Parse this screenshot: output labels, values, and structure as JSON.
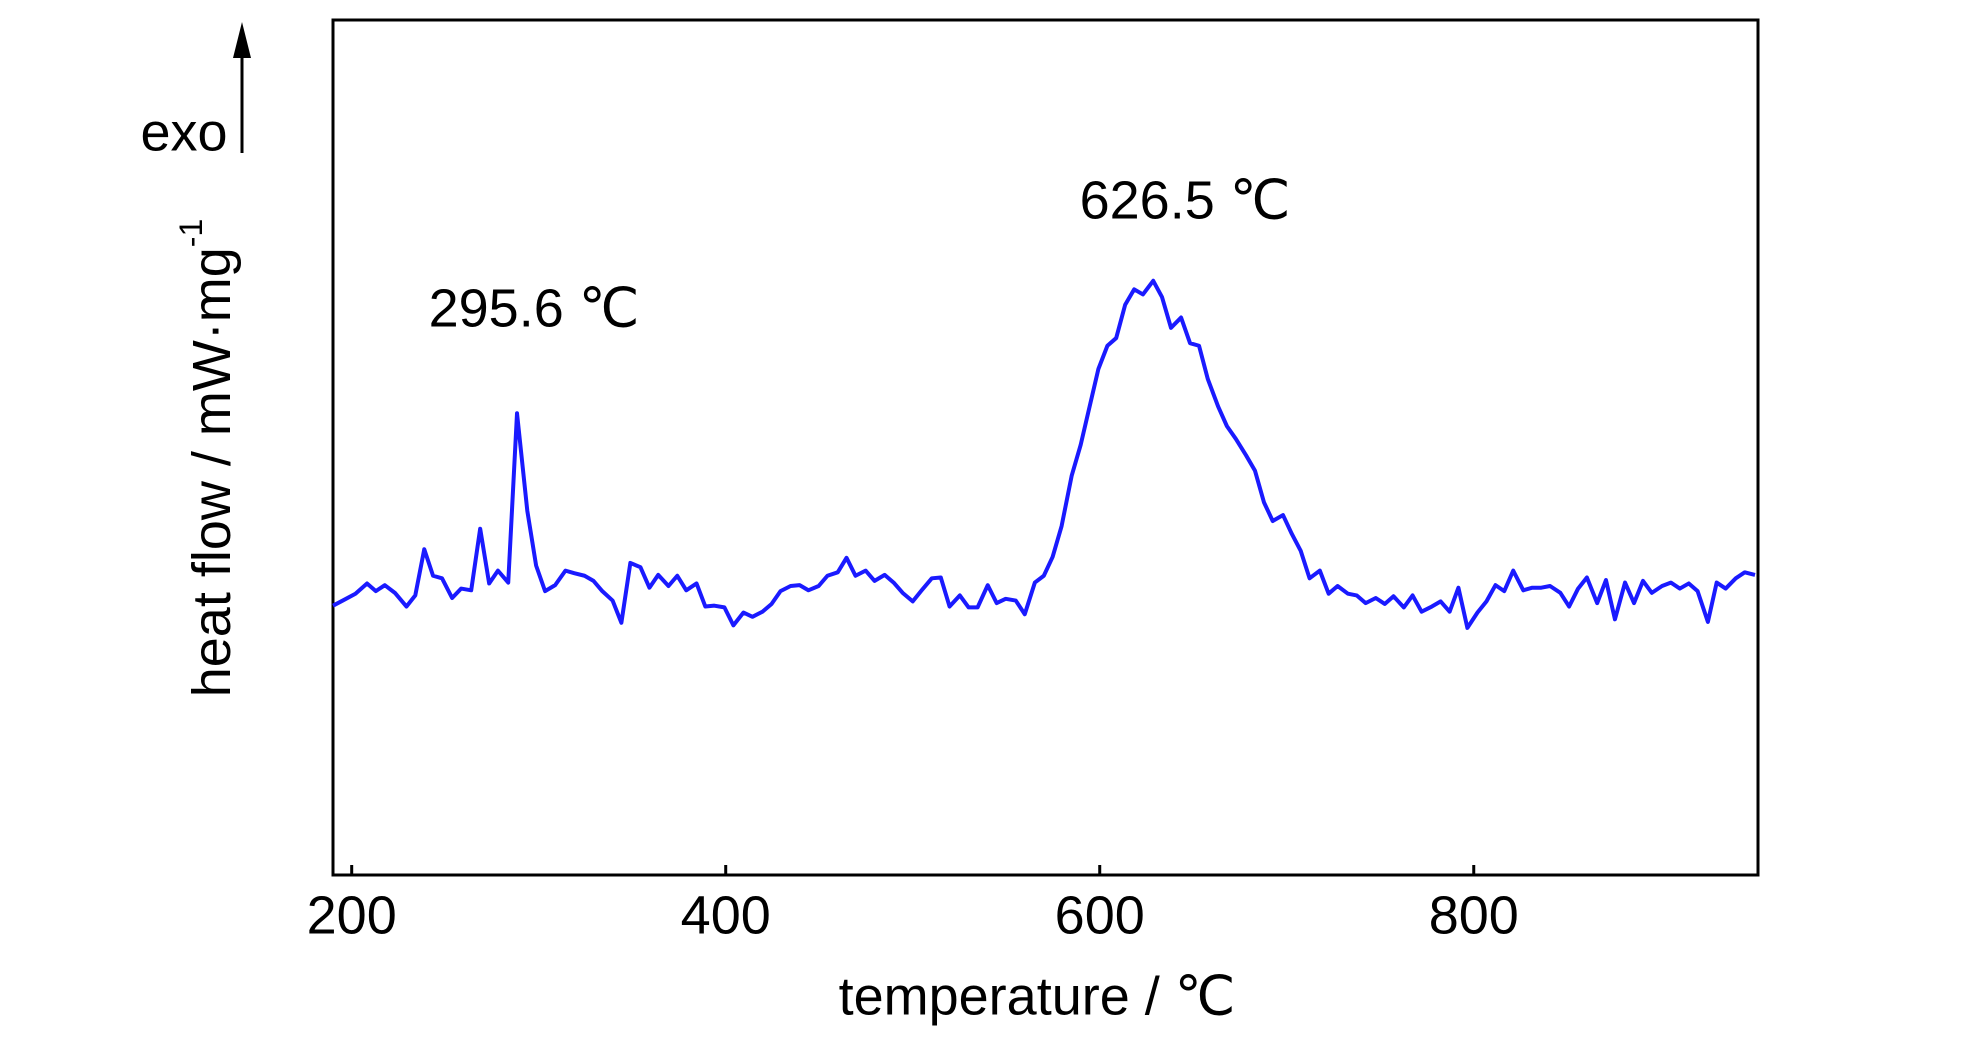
{
  "chart_data": {
    "type": "line",
    "xlabel": "temperature / ℃",
    "ylabel": {
      "text": "heat flow / mW·mg",
      "sup": "-1"
    },
    "direction_label": "exo",
    "annotations": [
      "295.6 ℃",
      "626.5 ℃"
    ],
    "xlim": [
      190,
      952
    ],
    "xticks": [
      200,
      400,
      600,
      800
    ],
    "ylim": [
      0,
      100
    ],
    "yticks": [],
    "x": [
      190,
      195.2,
      202,
      208.2,
      212.9,
      217.7,
      223.1,
      229.3,
      234,
      238.8,
      243.5,
      248.3,
      253.7,
      258.5,
      263.9,
      268.7,
      273.5,
      278.2,
      283.7,
      288.4,
      293.9,
      298.6,
      303.4,
      308.8,
      314.3,
      319,
      324.5,
      329.3,
      334,
      339.5,
      344.2,
      349,
      354.4,
      359.2,
      363.9,
      369.4,
      374.1,
      378.9,
      384.4,
      389.1,
      393.9,
      399.3,
      404.1,
      409.5,
      414.3,
      419.7,
      424.5,
      429.3,
      434.7,
      439.5,
      444.2,
      449.7,
      454.4,
      459.9,
      464.6,
      469.4,
      474.8,
      479.6,
      485,
      489.8,
      494.6,
      500,
      504.8,
      510.2,
      515,
      519.7,
      525.2,
      529.9,
      534.7,
      540.1,
      544.9,
      549.7,
      555.1,
      559.9,
      565.3,
      570.1,
      574.8,
      579.6,
      585,
      589.8,
      594.6,
      599.3,
      604.1,
      608.8,
      613.6,
      618.4,
      623.1,
      628.6,
      633.3,
      638.1,
      643.5,
      648.3,
      653.1,
      657.8,
      663.3,
      668,
      672.8,
      678.2,
      683,
      687.8,
      692.5,
      698,
      702.7,
      707.5,
      712.2,
      717.7,
      722.4,
      727.2,
      732.7,
      737.4,
      742.2,
      747.6,
      752.4,
      757.1,
      762.6,
      767.3,
      772.1,
      777.6,
      782.3,
      787.1,
      791.8,
      796.6,
      802,
      806.8,
      811.6,
      816.3,
      821.1,
      826.5,
      831.3,
      836.1,
      840.8,
      846.3,
      851,
      855.8,
      860.5,
      866,
      870.7,
      875.5,
      880.9,
      885.7,
      890.5,
      895.2,
      900.7,
      905.4,
      910.2,
      915,
      919.7,
      925.2,
      929.9,
      934.7,
      940.1,
      944.9,
      950.4
    ],
    "series": [
      {
        "name": "heat flow",
        "color": "#1a1aff",
        "values": [
          31.5,
          32.1,
          32.9,
          34.1,
          33.2,
          33.9,
          33,
          31.4,
          32.7,
          38.1,
          35,
          34.7,
          32.4,
          33.5,
          33.3,
          40.5,
          34.1,
          35.6,
          34.2,
          54,
          42.6,
          36.2,
          33.2,
          33.9,
          35.6,
          35.3,
          35,
          34.4,
          33.2,
          32.1,
          29.5,
          36.5,
          36,
          33.6,
          35.1,
          33.8,
          35,
          33.3,
          34.1,
          31.4,
          31.5,
          31.3,
          29.2,
          30.7,
          30.2,
          30.8,
          31.7,
          33.2,
          33.8,
          33.9,
          33.3,
          33.8,
          35,
          35.4,
          37.1,
          35,
          35.6,
          34.4,
          35.1,
          34.2,
          33,
          32,
          33.3,
          34.7,
          34.8,
          31.4,
          32.7,
          31.3,
          31.3,
          33.9,
          31.8,
          32.3,
          32.1,
          30.5,
          34.2,
          35,
          37.2,
          40.8,
          46.7,
          50.3,
          54.8,
          59.2,
          61.9,
          62.8,
          66.7,
          68.5,
          67.9,
          69.5,
          67.6,
          64,
          65.2,
          62.2,
          61.9,
          58,
          54.8,
          52.5,
          51,
          49.1,
          47.3,
          43.6,
          41.4,
          42.1,
          39.9,
          37.9,
          34.7,
          35.6,
          32.9,
          33.8,
          32.9,
          32.7,
          31.8,
          32.4,
          31.7,
          32.6,
          31.3,
          32.7,
          30.8,
          31.4,
          32,
          30.8,
          33.6,
          28.9,
          30.7,
          32,
          33.9,
          33.2,
          35.6,
          33.3,
          33.6,
          33.6,
          33.8,
          33,
          31.4,
          33.5,
          34.8,
          31.8,
          34.5,
          29.9,
          34.2,
          31.8,
          34.4,
          33,
          33.8,
          34.2,
          33.5,
          34.1,
          33.2,
          29.6,
          34.2,
          33.5,
          34.7,
          35.4,
          35.1
        ]
      }
    ]
  }
}
